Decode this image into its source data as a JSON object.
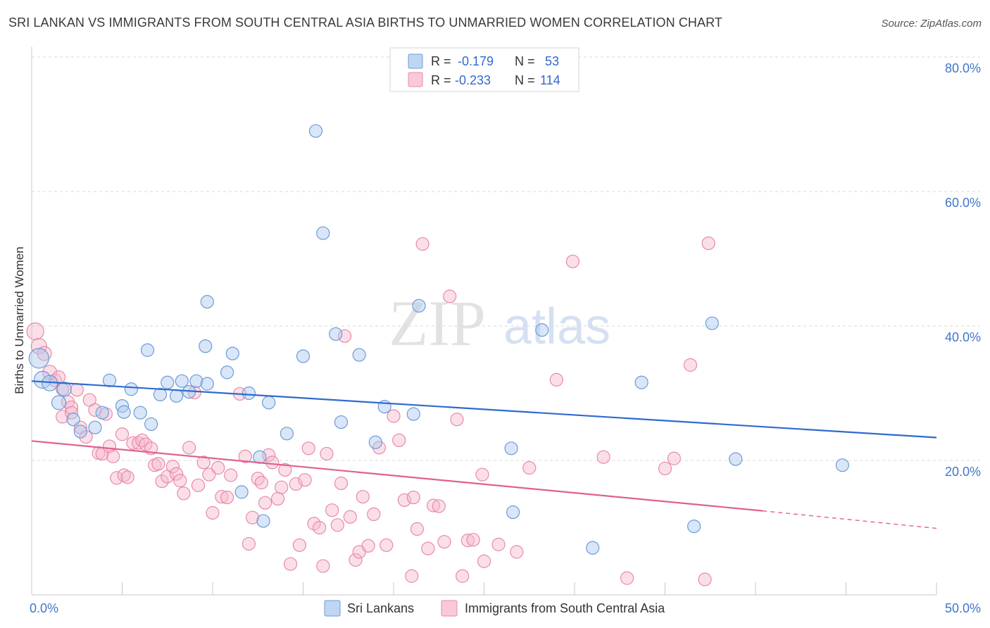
{
  "title": "SRI LANKAN VS IMMIGRANTS FROM SOUTH CENTRAL ASIA BIRTHS TO UNMARRIED WOMEN CORRELATION CHART",
  "source": "Source: ZipAtlas.com",
  "watermark": {
    "zip": "ZIP",
    "atlas": "atlas"
  },
  "colors": {
    "blue_fill": "#aac8ee",
    "blue_stroke": "#6b9bd8",
    "blue_line": "#2f6ad0",
    "pink_fill": "#f6b8cc",
    "pink_stroke": "#e88aa8",
    "pink_line": "#e0608e",
    "accent_text": "#3f76c9"
  },
  "legend_top": [
    {
      "swatch": "blue",
      "r_label": "R =",
      "r_value": "-0.179",
      "n_label": "N =",
      "n_value": "53"
    },
    {
      "swatch": "pink",
      "r_label": "R =",
      "r_value": "-0.233",
      "n_label": "N =",
      "n_value": "114"
    }
  ],
  "legend_bottom": [
    {
      "swatch": "blue",
      "label": "Sri Lankans"
    },
    {
      "swatch": "pink",
      "label": "Immigrants from South Central Asia"
    }
  ],
  "chart_data": {
    "type": "scatter",
    "title": "SRI LANKAN VS IMMIGRANTS FROM SOUTH CENTRAL ASIA BIRTHS TO UNMARRIED WOMEN CORRELATION CHART",
    "xlabel": "",
    "ylabel": "Births to Unmarried Women",
    "xlim": [
      0,
      50
    ],
    "ylim": [
      0,
      80
    ],
    "x_tick_labels": [
      "0.0%",
      "50.0%"
    ],
    "y_ticks": [
      20,
      40,
      60,
      80
    ],
    "y_tick_labels": [
      "20.0%",
      "40.0%",
      "60.0%",
      "80.0%"
    ],
    "grid": true,
    "legend_position": "top-center",
    "series": [
      {
        "name": "Sri Lankans",
        "color": "blue",
        "R": -0.179,
        "N": 53,
        "trend": {
          "x": [
            0,
            50
          ],
          "y": [
            31.8,
            23.4
          ]
        },
        "points": [
          [
            0.4,
            35.2,
            14
          ],
          [
            0.6,
            32.0,
            12
          ],
          [
            1.0,
            31.5,
            11
          ],
          [
            1.8,
            30.6,
            10
          ],
          [
            1.5,
            28.6,
            10
          ],
          [
            2.3,
            26.1,
            9
          ],
          [
            2.7,
            24.3,
            9
          ],
          [
            3.5,
            24.9,
            9
          ],
          [
            3.9,
            27.1,
            9
          ],
          [
            4.3,
            31.9,
            9
          ],
          [
            5.0,
            28.1,
            9
          ],
          [
            5.1,
            27.2,
            9
          ],
          [
            5.5,
            30.6,
            9
          ],
          [
            6.0,
            27.1,
            9
          ],
          [
            6.4,
            36.4,
            9
          ],
          [
            6.6,
            25.4,
            9
          ],
          [
            7.1,
            29.8,
            9
          ],
          [
            7.5,
            31.6,
            9
          ],
          [
            8.0,
            29.6,
            9
          ],
          [
            8.3,
            31.8,
            9
          ],
          [
            8.7,
            30.2,
            9
          ],
          [
            9.1,
            31.8,
            9
          ],
          [
            9.7,
            31.4,
            9
          ],
          [
            9.6,
            37.0,
            9
          ],
          [
            9.7,
            43.6,
            9
          ],
          [
            10.8,
            33.1,
            9
          ],
          [
            11.1,
            35.9,
            9
          ],
          [
            11.6,
            15.3,
            9
          ],
          [
            12.0,
            30.0,
            9
          ],
          [
            12.6,
            20.5,
            9
          ],
          [
            12.8,
            11.0,
            9
          ],
          [
            13.1,
            28.6,
            9
          ],
          [
            14.1,
            24.0,
            9
          ],
          [
            15.0,
            35.5,
            9
          ],
          [
            15.7,
            69.0,
            9
          ],
          [
            16.1,
            53.8,
            9
          ],
          [
            16.8,
            38.8,
            9
          ],
          [
            17.1,
            25.7,
            9
          ],
          [
            18.1,
            35.7,
            9
          ],
          [
            19.0,
            22.7,
            9
          ],
          [
            19.5,
            28.0,
            9
          ],
          [
            21.1,
            26.9,
            9
          ],
          [
            21.4,
            43.0,
            9
          ],
          [
            26.5,
            21.8,
            9
          ],
          [
            26.6,
            12.3,
            9
          ],
          [
            28.2,
            39.4,
            9
          ],
          [
            31.0,
            7.0,
            9
          ],
          [
            33.7,
            31.6,
            9
          ],
          [
            36.6,
            10.2,
            9
          ],
          [
            37.6,
            40.4,
            9
          ],
          [
            38.9,
            20.2,
            9
          ],
          [
            44.8,
            19.3,
            9
          ]
        ]
      },
      {
        "name": "Immigrants from South Central Asia",
        "color": "pink",
        "R": -0.233,
        "N": 114,
        "trend": {
          "x": [
            0,
            40.4
          ],
          "y": [
            22.9,
            12.5
          ]
        },
        "trend_dashed": {
          "x": [
            40.4,
            50
          ],
          "y": [
            12.5,
            9.9
          ]
        },
        "points": [
          [
            0.2,
            39.2,
            12
          ],
          [
            0.4,
            37.0,
            11
          ],
          [
            0.7,
            35.9,
            10
          ],
          [
            1.0,
            33.1,
            10
          ],
          [
            1.3,
            31.9,
            9
          ],
          [
            1.5,
            32.4,
            9
          ],
          [
            1.7,
            30.6,
            9
          ],
          [
            1.7,
            26.5,
            9
          ],
          [
            2.0,
            28.7,
            9
          ],
          [
            2.2,
            27.9,
            9
          ],
          [
            2.2,
            27.1,
            9
          ],
          [
            2.5,
            30.5,
            9
          ],
          [
            2.7,
            24.9,
            9
          ],
          [
            3.0,
            23.5,
            9
          ],
          [
            3.2,
            29.0,
            9
          ],
          [
            3.5,
            27.5,
            9
          ],
          [
            3.7,
            21.1,
            9
          ],
          [
            3.9,
            21.0,
            9
          ],
          [
            4.1,
            26.9,
            9
          ],
          [
            4.3,
            22.1,
            9
          ],
          [
            4.5,
            20.6,
            9
          ],
          [
            4.7,
            17.4,
            9
          ],
          [
            5.0,
            23.9,
            9
          ],
          [
            5.1,
            17.8,
            9
          ],
          [
            5.3,
            17.5,
            9
          ],
          [
            5.6,
            22.6,
            9
          ],
          [
            5.9,
            22.6,
            9
          ],
          [
            6.1,
            23.0,
            9
          ],
          [
            6.3,
            22.4,
            9
          ],
          [
            6.6,
            21.8,
            9
          ],
          [
            6.8,
            19.3,
            9
          ],
          [
            7.0,
            19.5,
            9
          ],
          [
            7.2,
            16.9,
            9
          ],
          [
            7.5,
            17.6,
            9
          ],
          [
            7.8,
            19.1,
            9
          ],
          [
            8.0,
            18.0,
            9
          ],
          [
            8.2,
            17.0,
            9
          ],
          [
            8.4,
            15.1,
            9
          ],
          [
            8.7,
            21.9,
            9
          ],
          [
            9.0,
            30.1,
            9
          ],
          [
            9.2,
            16.3,
            9
          ],
          [
            9.5,
            19.7,
            9
          ],
          [
            9.8,
            17.9,
            9
          ],
          [
            10.0,
            12.2,
            9
          ],
          [
            10.3,
            18.9,
            9
          ],
          [
            10.5,
            14.6,
            9
          ],
          [
            10.8,
            14.5,
            9
          ],
          [
            11.0,
            17.8,
            9
          ],
          [
            11.5,
            29.9,
            9
          ],
          [
            11.8,
            20.6,
            9
          ],
          [
            12.0,
            7.6,
            9
          ],
          [
            12.2,
            11.5,
            9
          ],
          [
            12.5,
            17.3,
            9
          ],
          [
            12.7,
            16.7,
            9
          ],
          [
            12.9,
            13.7,
            9
          ],
          [
            13.1,
            20.8,
            9
          ],
          [
            13.3,
            19.7,
            9
          ],
          [
            13.6,
            14.3,
            9
          ],
          [
            13.8,
            16.0,
            9
          ],
          [
            14.0,
            18.6,
            9
          ],
          [
            14.3,
            4.6,
            9
          ],
          [
            14.6,
            16.5,
            9
          ],
          [
            14.8,
            7.4,
            9
          ],
          [
            15.1,
            17.1,
            9
          ],
          [
            15.3,
            21.8,
            9
          ],
          [
            15.6,
            10.6,
            9
          ],
          [
            15.9,
            10.0,
            9
          ],
          [
            16.1,
            4.3,
            9
          ],
          [
            16.3,
            21.0,
            9
          ],
          [
            16.6,
            12.6,
            9
          ],
          [
            16.9,
            10.4,
            9
          ],
          [
            17.1,
            16.6,
            9
          ],
          [
            17.3,
            38.5,
            9
          ],
          [
            17.6,
            11.6,
            9
          ],
          [
            17.9,
            5.2,
            9
          ],
          [
            18.1,
            6.4,
            9
          ],
          [
            18.3,
            14.6,
            9
          ],
          [
            18.6,
            7.3,
            9
          ],
          [
            18.9,
            12.0,
            9
          ],
          [
            19.2,
            21.9,
            9
          ],
          [
            19.6,
            7.4,
            9
          ],
          [
            20.0,
            26.6,
            9
          ],
          [
            20.3,
            23.0,
            9
          ],
          [
            20.6,
            14.1,
            9
          ],
          [
            21.0,
            2.8,
            9
          ],
          [
            21.1,
            14.5,
            9
          ],
          [
            21.3,
            9.8,
            9
          ],
          [
            21.6,
            52.2,
            9
          ],
          [
            21.9,
            6.9,
            9
          ],
          [
            22.2,
            13.3,
            9
          ],
          [
            22.5,
            13.2,
            9
          ],
          [
            22.8,
            7.9,
            9
          ],
          [
            23.1,
            44.4,
            9
          ],
          [
            23.5,
            26.1,
            9
          ],
          [
            23.8,
            2.8,
            9
          ],
          [
            24.1,
            8.1,
            9
          ],
          [
            24.4,
            8.2,
            9
          ],
          [
            24.9,
            17.9,
            9
          ],
          [
            25.0,
            5.0,
            9
          ],
          [
            25.8,
            7.5,
            9
          ],
          [
            26.8,
            6.4,
            9
          ],
          [
            27.5,
            18.9,
            9
          ],
          [
            29.0,
            32.0,
            9
          ],
          [
            29.9,
            49.6,
            9
          ],
          [
            31.6,
            20.5,
            9
          ],
          [
            32.9,
            2.5,
            9
          ],
          [
            35.0,
            18.8,
            9
          ],
          [
            35.5,
            20.3,
            9
          ],
          [
            36.4,
            34.2,
            9
          ],
          [
            37.2,
            2.3,
            9
          ],
          [
            37.4,
            52.3,
            9
          ]
        ]
      }
    ]
  }
}
